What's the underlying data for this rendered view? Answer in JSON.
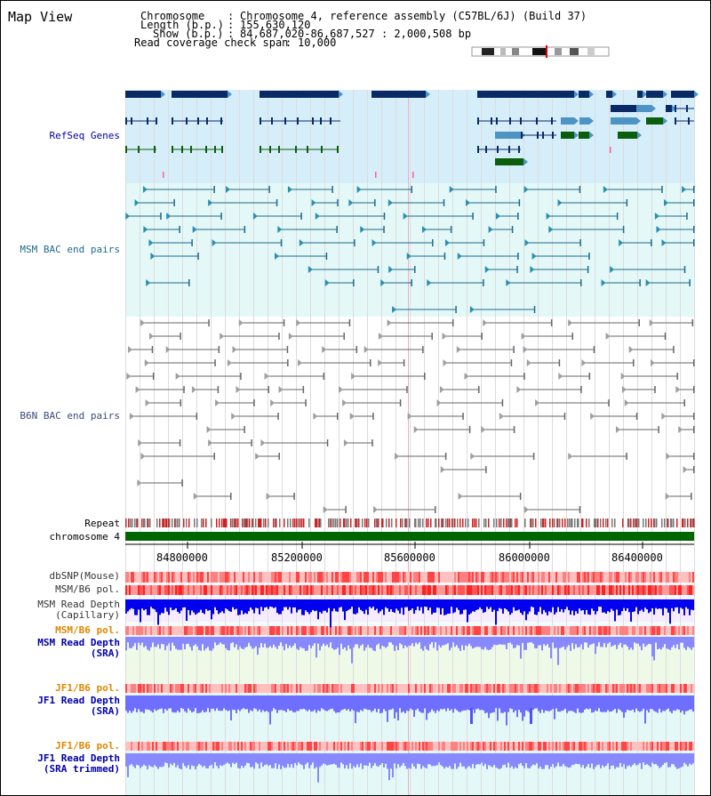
{
  "page": {
    "title": "Map View"
  },
  "info": {
    "chromosome_key": "Chromosome",
    "chromosome_val": "Chromosome 4, reference assembly (C57BL/6J) (Build 37)",
    "length_key": "Length (b.p.)",
    "length_val": "155,630,120",
    "show_key": "Show (b.p.)",
    "show_val": "84,687,020-86,687,527 : 2,000,508 bp",
    "coverage_key": "Read coverage check span",
    "coverage_val": "10,000"
  },
  "tracks": {
    "refseq": "RefSeq Genes",
    "msm_bac": "MSM BAC end pairs",
    "b6n_bac": "B6N BAC end pairs",
    "repeat": "Repeat",
    "chromosome": "chromosome 4",
    "dbsnp": "dbSNP(Mouse)",
    "msm_b6_pol": "MSM/B6 pol.",
    "msm_depth_cap_1": "MSM Read Depth",
    "msm_depth_cap_2": "(Capillary)",
    "msm_b6_pol_sra": "MSM/B6 pol.",
    "msm_depth_sra_1": "MSM Read Depth",
    "msm_depth_sra_2": "(SRA)",
    "jf1_b6_pol": "JF1/B6 pol.",
    "jf1_depth_sra_1": "JF1 Read Depth",
    "jf1_depth_sra_2": "(SRA)",
    "jf1_b6_pol_trim": "JF1/B6 pol.",
    "jf1_depth_trim_1": "JF1 Read Depth",
    "jf1_depth_trim_2": "(SRA trimmed)"
  },
  "axis": {
    "ticks": [
      "84800000",
      "85200000",
      "85600000",
      "86000000",
      "86400000"
    ]
  },
  "colors": {
    "refseq_bg": "#d6eefa",
    "msm_bg": "#e4f8f8",
    "gene_dark": "#0a2a66",
    "gene_mid": "#4d94c4",
    "gene_green": "#0b5e0b",
    "msm_line": "#1e6a8a",
    "b6n_line": "#666666",
    "depth_blue": "#0000ee",
    "depth_light": "#8888ff",
    "pol_red": "#ff2222",
    "label_blue": "#0000aa",
    "label_orange": "#dd8800",
    "chrom_green": "#006600"
  }
}
